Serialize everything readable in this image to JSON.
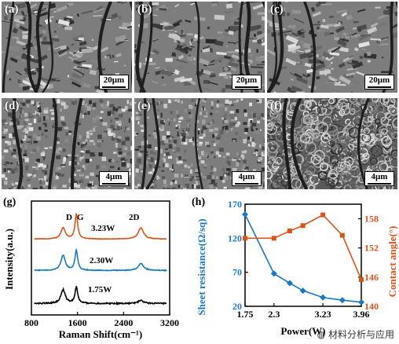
{
  "sem_panels": [
    {
      "letter": "(a)",
      "scale": "20μm",
      "texture": "coarse"
    },
    {
      "letter": "(b)",
      "scale": "20μm",
      "texture": "coarse"
    },
    {
      "letter": "(c)",
      "scale": "20μm",
      "texture": "coarse"
    },
    {
      "letter": "(d)",
      "scale": "4μm",
      "texture": "fine"
    },
    {
      "letter": "(e)",
      "scale": "4μm",
      "texture": "fine"
    },
    {
      "letter": "(f)",
      "scale": "4μm",
      "texture": "cells"
    }
  ],
  "panel_g": {
    "letter": "(g)",
    "xlabel": "Raman Shift(cm⁻¹)",
    "ylabel": "Intensity(a.u.)",
    "peak_labels": [
      "D",
      "G",
      "2D"
    ],
    "traces": [
      {
        "label": "3.23W",
        "color": "#d9541a"
      },
      {
        "label": "2.30W",
        "color": "#1b78c2"
      },
      {
        "label": "1.75W",
        "color": "#000000"
      }
    ]
  },
  "panel_h": {
    "letter": "(h)",
    "xlabel": "Power(W)",
    "ylabel_left": "Sheet resistance(Ω/sq)",
    "ylabel_right": "Contact angle(°)",
    "left_color": "#1b78c2",
    "right_color": "#d9541a"
  },
  "chart_data": [
    {
      "type": "line",
      "xlabel": "Raman Shift(cm⁻¹)",
      "ylabel": "Intensity(a.u.)",
      "xlim": [
        800,
        3200
      ],
      "xticks": [
        800,
        1600,
        2400,
        3200
      ],
      "peaks_cm": {
        "D": 1350,
        "G": 1580,
        "2D": 2700
      },
      "series": [
        {
          "name": "3.23W",
          "peaks": [
            {
              "x": 1350,
              "h": 0.45
            },
            {
              "x": 1580,
              "h": 1.0
            },
            {
              "x": 2700,
              "h": 0.45
            }
          ],
          "offset": 2,
          "noise": 0.02
        },
        {
          "name": "2.30W",
          "peaks": [
            {
              "x": 1350,
              "h": 0.6
            },
            {
              "x": 1580,
              "h": 0.8
            },
            {
              "x": 2700,
              "h": 0.28
            }
          ],
          "offset": 1,
          "noise": 0.03
        },
        {
          "name": "1.75W",
          "peaks": [
            {
              "x": 1350,
              "h": 0.55
            },
            {
              "x": 1580,
              "h": 0.65
            },
            {
              "x": 2700,
              "h": 0.12
            }
          ],
          "offset": 0,
          "noise": 0.05
        }
      ]
    },
    {
      "type": "line",
      "xlabel": "Power(W)",
      "xticks": [
        1.75,
        2.3,
        3.23,
        3.96
      ],
      "xtick_labels": [
        "1.75",
        "2.3",
        "3.23",
        "3.96"
      ],
      "xlim": [
        1.75,
        3.96
      ],
      "series": [
        {
          "name": "Sheet resistance(Ω/sq)",
          "axis": "left",
          "ylim": [
            20,
            170
          ],
          "yticks": [
            20,
            70,
            120,
            170
          ],
          "x": [
            1.75,
            2.3,
            2.6,
            2.85,
            3.23,
            3.6,
            3.96
          ],
          "y": [
            155,
            68,
            54,
            43,
            33,
            29,
            26
          ]
        },
        {
          "name": "Contact angle(°)",
          "axis": "right",
          "ylim": [
            140,
            161
          ],
          "yticks": [
            140,
            146,
            152,
            158
          ],
          "x": [
            1.75,
            2.3,
            2.6,
            2.85,
            3.23,
            3.6,
            3.96
          ],
          "y": [
            154,
            154,
            155.5,
            156.6,
            158.8,
            154.6,
            145.5
          ]
        }
      ]
    }
  ],
  "watermark": "材料分析与应用"
}
